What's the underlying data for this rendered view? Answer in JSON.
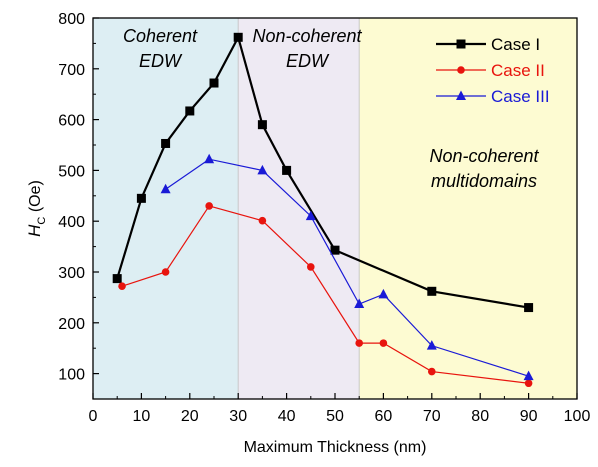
{
  "chart_data": {
    "type": "line",
    "xlabel": "Maximum Thickness (nm)",
    "ylabel_main": "H",
    "ylabel_sub": "C",
    "ylabel_unit": " (Oe)",
    "xlim": [
      0,
      100
    ],
    "ylim": [
      50,
      800
    ],
    "xticks": [
      "0",
      "10",
      "20",
      "30",
      "40",
      "50",
      "60",
      "70",
      "80",
      "90",
      "100"
    ],
    "yticks": [
      "100",
      "200",
      "300",
      "400",
      "500",
      "600",
      "700",
      "800"
    ],
    "xtick_values": [
      0,
      10,
      20,
      30,
      40,
      50,
      60,
      70,
      80,
      90,
      100
    ],
    "ytick_values": [
      100,
      200,
      300,
      400,
      500,
      600,
      700,
      800
    ],
    "legend_position": "top-right",
    "regions": [
      {
        "x_range": [
          0,
          30
        ],
        "color": "#ddeef3",
        "label_lines": [
          "Coherent",
          "EDW"
        ]
      },
      {
        "x_range": [
          30,
          55
        ],
        "color": "#eeeaf3",
        "label_lines": [
          "Non-coherent",
          "EDW"
        ]
      },
      {
        "x_range": [
          55,
          100
        ],
        "color": "#fdfbd2",
        "label_lines": [
          "Non-coherent",
          "multidomains"
        ]
      }
    ],
    "series": [
      {
        "name": "Case I",
        "color": "#000000",
        "marker": "square",
        "x": [
          5,
          10,
          15,
          20,
          25,
          30,
          35,
          40,
          50,
          70,
          90
        ],
        "y": [
          287,
          445,
          553,
          617,
          672,
          762,
          590,
          500,
          343,
          262,
          230
        ]
      },
      {
        "name": "Case II",
        "color": "#e8140e",
        "marker": "circle",
        "x": [
          6,
          15,
          24,
          35,
          45,
          55,
          60,
          70,
          90
        ],
        "y": [
          272,
          300,
          430,
          401,
          310,
          160,
          160,
          104,
          81
        ]
      },
      {
        "name": "Case III",
        "color": "#1a1ad6",
        "marker": "triangle",
        "x": [
          15,
          24,
          35,
          45,
          55,
          60,
          70,
          90
        ],
        "y": [
          463,
          522,
          500,
          410,
          237,
          256,
          155,
          95
        ]
      }
    ]
  }
}
